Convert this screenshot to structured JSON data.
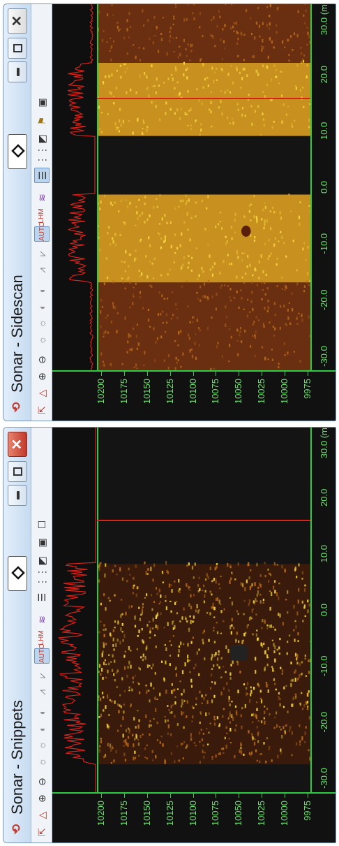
{
  "windows": [
    {
      "id": "snippets",
      "title": "Sonar - Snippets",
      "close_active": true,
      "y_ticks": [
        "10200",
        "10175",
        "10150",
        "10125",
        "10100",
        "10075",
        "10050",
        "10025",
        "10000",
        "9975"
      ],
      "x_ticks": [
        "-30.0",
        "-20.0",
        "-10.0",
        "0.0",
        "10.0",
        "20.0",
        "30.0 (m)"
      ]
    },
    {
      "id": "sidescan",
      "title": "Sonar - Sidescan",
      "close_active": false,
      "y_ticks": [
        "10200",
        "10175",
        "10150",
        "10125",
        "10100",
        "10075",
        "10050",
        "10025",
        "10000",
        "9975"
      ],
      "x_ticks": [
        "-30.0",
        "-20.0",
        "-10.0",
        "0.0",
        "10.0",
        "20.0",
        "30.0 (m)"
      ]
    }
  ],
  "toolbar": {
    "tools": [
      "pointer-tool",
      "measure-tool",
      "zoom-in-tool",
      "zoom-out-tool",
      "brightness-up-tool",
      "brightness-down-tool",
      "contrast-up-tool",
      "contrast-down-tool",
      "gain-up-tool",
      "gain-down-tool",
      "auto-tool",
      "lhm-tool",
      "palette-tool",
      "grid-tool",
      "list-tool",
      "shade-tool",
      "snapshot-tool"
    ],
    "auto_label": "AUTO",
    "lhm_label": "LHM"
  },
  "colors": {
    "cursor": "#d8221a",
    "axis": "#2ecc40",
    "axis_text": "#6ce26c",
    "sonar_bright": "#f4d23a",
    "sonar_mid": "#b86a1a",
    "sonar_dark": "#3a1a0a"
  }
}
